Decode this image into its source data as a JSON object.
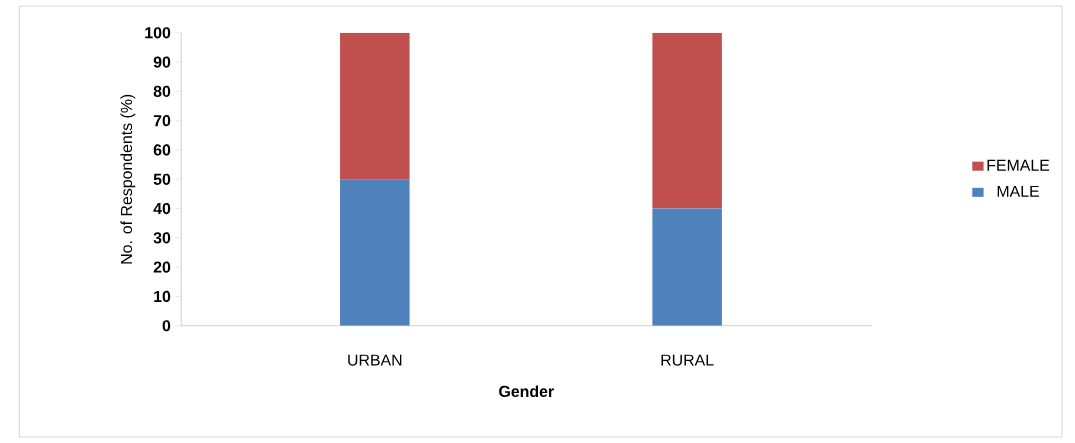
{
  "chart_data": {
    "type": "bar",
    "stacked": true,
    "xlabel": "Gender",
    "ylabel": "No. of Respondents (%)",
    "categories": [
      "URBAN",
      "RURAL"
    ],
    "series": [
      {
        "name": "MALE",
        "color": "#4f81bd",
        "values": [
          50,
          40
        ]
      },
      {
        "name": "FEMALE",
        "color": "#c0504d",
        "values": [
          50,
          60
        ]
      }
    ],
    "ylim": [
      0,
      100
    ],
    "yticks": [
      0,
      10,
      20,
      30,
      40,
      50,
      60,
      70,
      80,
      90,
      100
    ],
    "grid": false,
    "legend": "right"
  }
}
